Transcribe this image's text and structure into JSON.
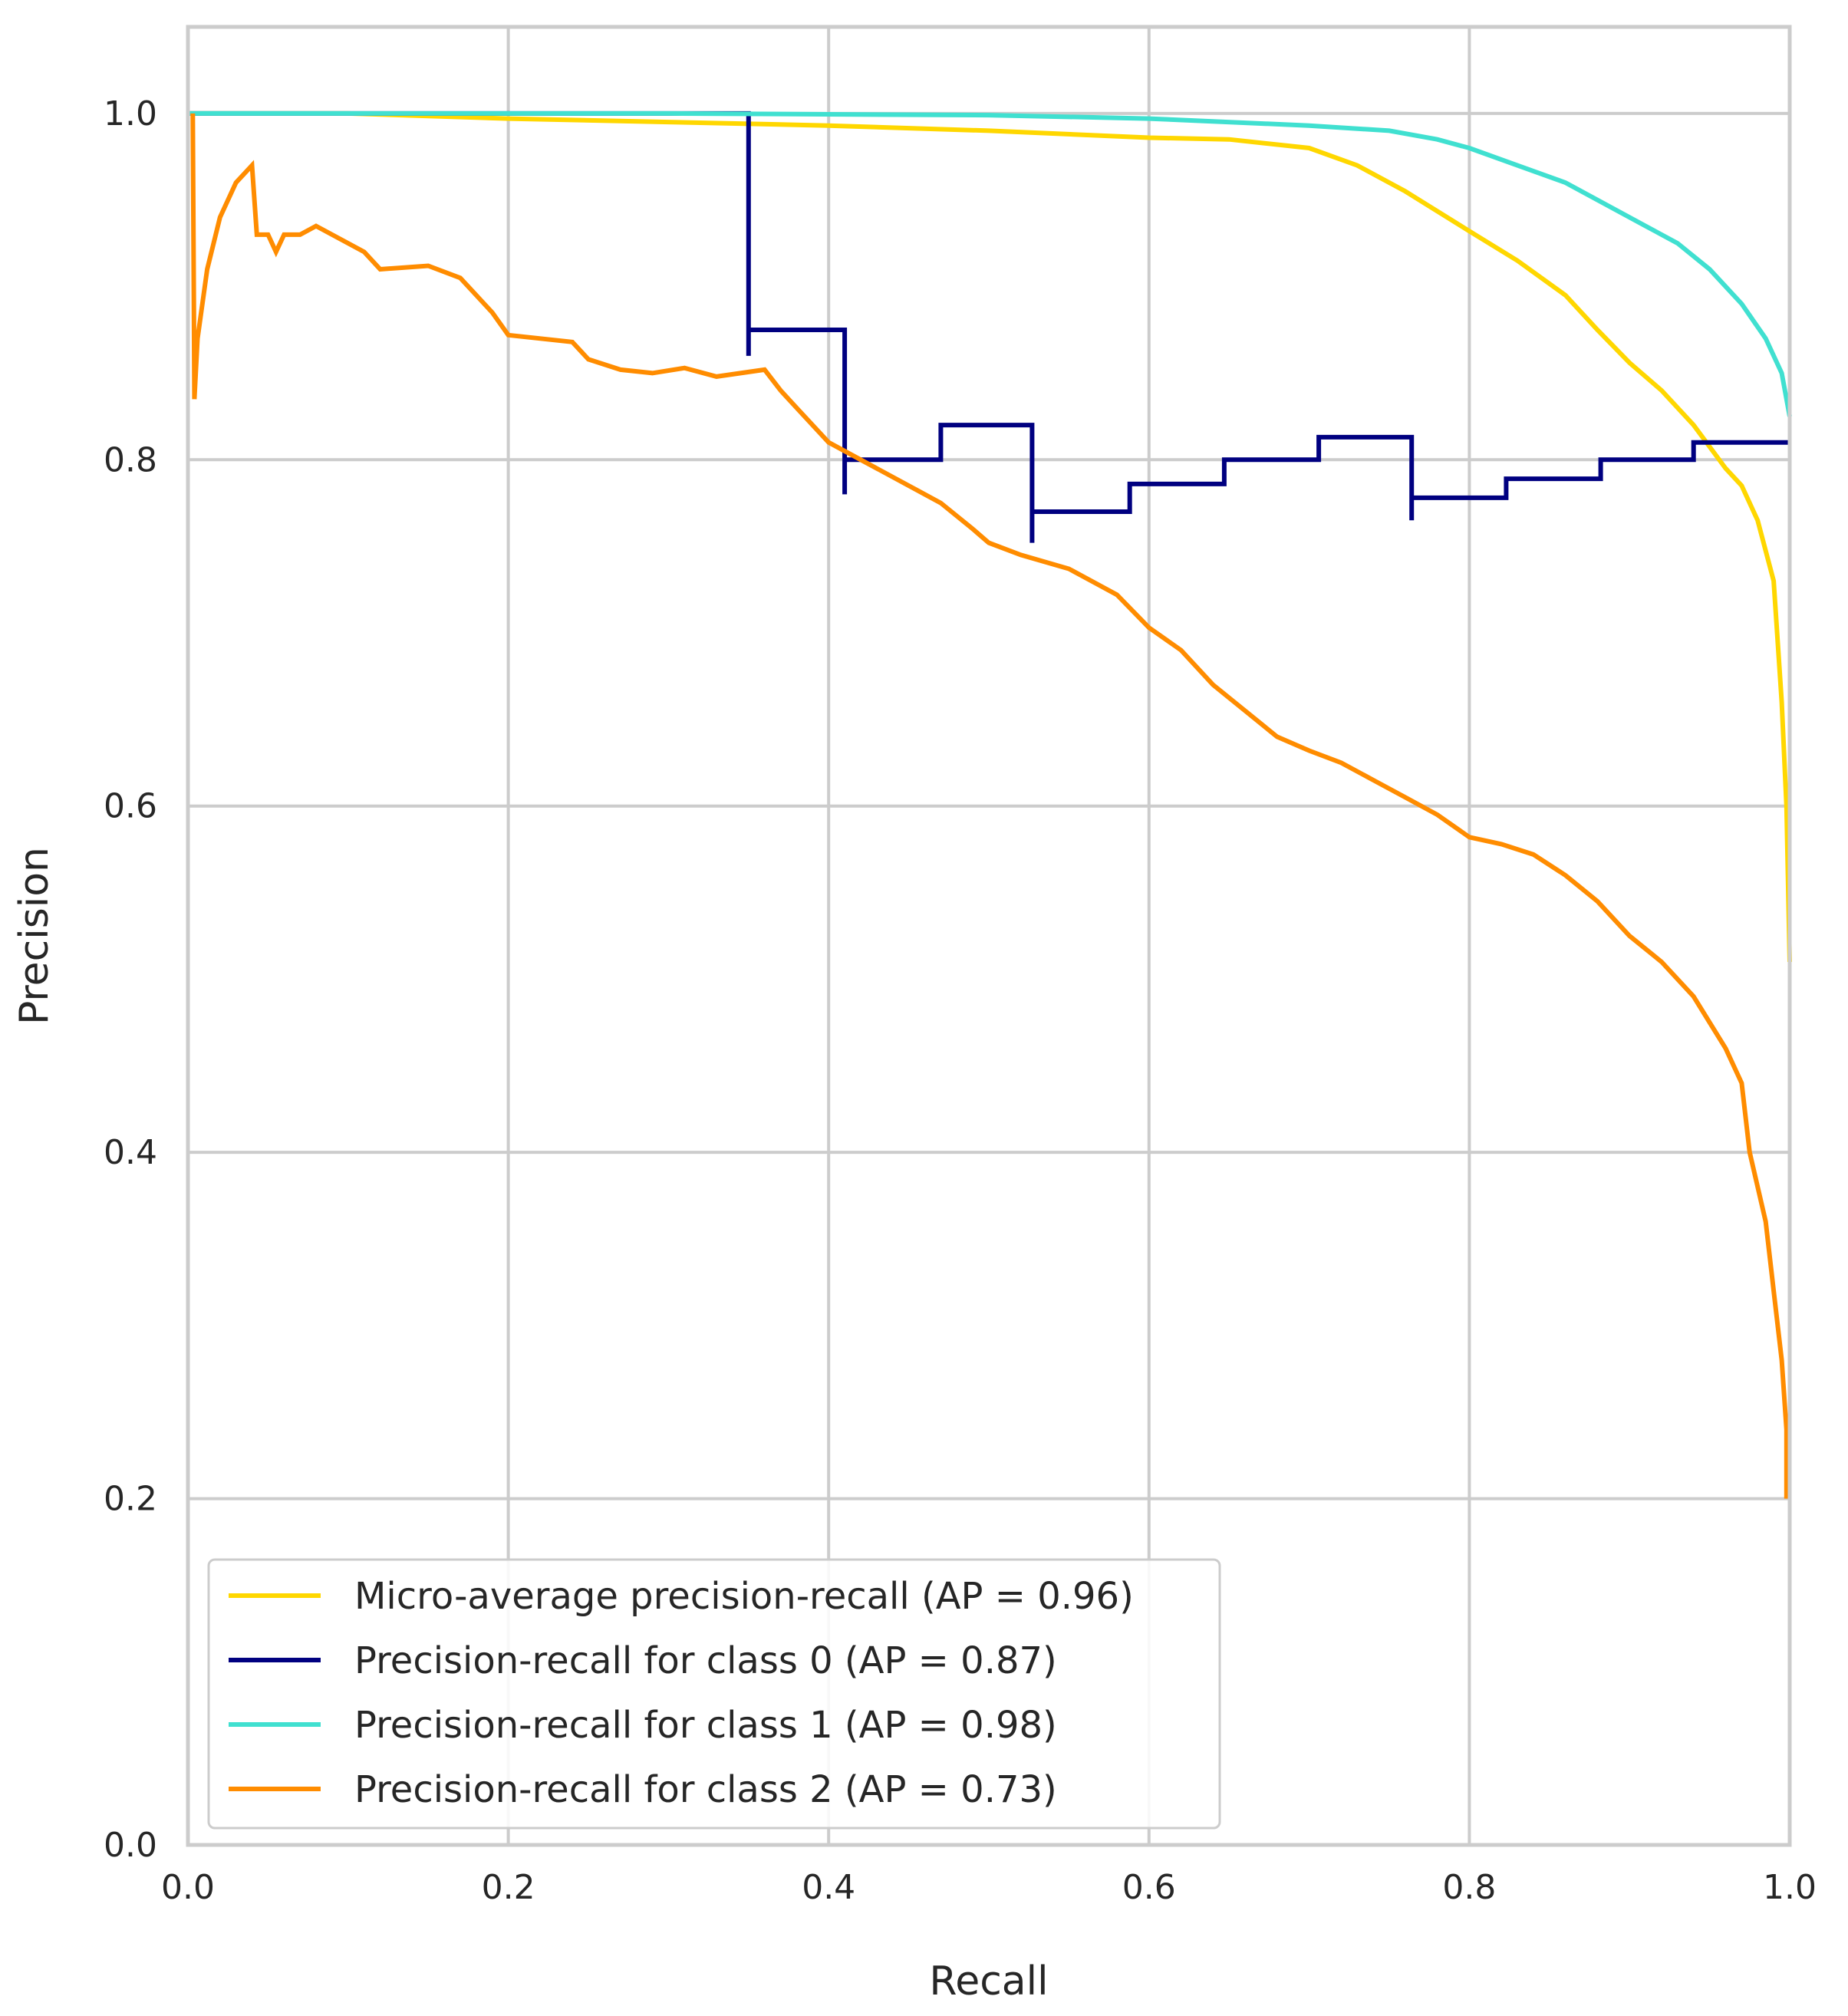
{
  "chart_data": {
    "type": "line",
    "title": "",
    "xlabel": "Recall",
    "ylabel": "Precision",
    "xlim": [
      0.0,
      1.0
    ],
    "ylim": [
      0.0,
      1.05
    ],
    "xticks": [
      "0.0",
      "0.2",
      "0.4",
      "0.6",
      "0.8",
      "1.0"
    ],
    "yticks": [
      "0.0",
      "0.2",
      "0.4",
      "0.6",
      "0.8",
      "1.0"
    ],
    "grid": true,
    "legend_position": "lower-left",
    "series": [
      {
        "name": "Micro-average precision-recall (AP = 0.96)",
        "color": "#FFD700",
        "points": [
          [
            0.0,
            1.0
          ],
          [
            0.1,
            1.0
          ],
          [
            0.2,
            0.997
          ],
          [
            0.3,
            0.995
          ],
          [
            0.4,
            0.993
          ],
          [
            0.5,
            0.99
          ],
          [
            0.6,
            0.986
          ],
          [
            0.65,
            0.985
          ],
          [
            0.7,
            0.98
          ],
          [
            0.73,
            0.97
          ],
          [
            0.76,
            0.955
          ],
          [
            0.8,
            0.932
          ],
          [
            0.83,
            0.915
          ],
          [
            0.86,
            0.895
          ],
          [
            0.88,
            0.875
          ],
          [
            0.9,
            0.856
          ],
          [
            0.92,
            0.84
          ],
          [
            0.94,
            0.82
          ],
          [
            0.96,
            0.795
          ],
          [
            0.97,
            0.785
          ],
          [
            0.98,
            0.765
          ],
          [
            0.99,
            0.73
          ],
          [
            0.995,
            0.66
          ],
          [
            0.998,
            0.6
          ],
          [
            1.0,
            0.51
          ]
        ]
      },
      {
        "name": "Precision-recall for class 0 (AP = 0.87)",
        "color": "#000080",
        "points": [
          [
            0.0,
            1.0
          ],
          [
            0.35,
            1.0
          ],
          [
            0.35,
            0.86
          ],
          [
            0.35,
            0.875
          ],
          [
            0.41,
            0.875
          ],
          [
            0.41,
            0.78
          ],
          [
            0.41,
            0.8
          ],
          [
            0.47,
            0.8
          ],
          [
            0.47,
            0.82
          ],
          [
            0.527,
            0.82
          ],
          [
            0.527,
            0.752
          ],
          [
            0.527,
            0.77
          ],
          [
            0.588,
            0.77
          ],
          [
            0.588,
            0.786
          ],
          [
            0.647,
            0.786
          ],
          [
            0.647,
            0.8
          ],
          [
            0.706,
            0.8
          ],
          [
            0.706,
            0.813
          ],
          [
            0.764,
            0.813
          ],
          [
            0.764,
            0.765
          ],
          [
            0.764,
            0.778
          ],
          [
            0.823,
            0.778
          ],
          [
            0.823,
            0.789
          ],
          [
            0.882,
            0.789
          ],
          [
            0.882,
            0.8
          ],
          [
            0.94,
            0.8
          ],
          [
            0.94,
            0.81
          ],
          [
            1.0,
            0.81
          ]
        ]
      },
      {
        "name": "Precision-recall for class 1 (AP = 0.98)",
        "color": "#40E0D0",
        "points": [
          [
            0.0,
            1.0
          ],
          [
            0.3,
            1.0
          ],
          [
            0.5,
            0.999
          ],
          [
            0.6,
            0.997
          ],
          [
            0.7,
            0.993
          ],
          [
            0.75,
            0.99
          ],
          [
            0.78,
            0.985
          ],
          [
            0.8,
            0.98
          ],
          [
            0.83,
            0.97
          ],
          [
            0.86,
            0.96
          ],
          [
            0.89,
            0.945
          ],
          [
            0.91,
            0.935
          ],
          [
            0.93,
            0.925
          ],
          [
            0.95,
            0.91
          ],
          [
            0.97,
            0.89
          ],
          [
            0.985,
            0.87
          ],
          [
            0.995,
            0.85
          ],
          [
            1.0,
            0.825
          ]
        ]
      },
      {
        "name": "Precision-recall for class 2 (AP = 0.73)",
        "color": "#FF8C00",
        "points": [
          [
            0.003,
            1.0
          ],
          [
            0.004,
            0.835
          ],
          [
            0.006,
            0.87
          ],
          [
            0.012,
            0.91
          ],
          [
            0.02,
            0.94
          ],
          [
            0.03,
            0.96
          ],
          [
            0.04,
            0.97
          ],
          [
            0.043,
            0.93
          ],
          [
            0.05,
            0.93
          ],
          [
            0.055,
            0.92
          ],
          [
            0.06,
            0.93
          ],
          [
            0.07,
            0.93
          ],
          [
            0.08,
            0.935
          ],
          [
            0.1,
            0.925
          ],
          [
            0.11,
            0.92
          ],
          [
            0.12,
            0.91
          ],
          [
            0.15,
            0.912
          ],
          [
            0.17,
            0.905
          ],
          [
            0.19,
            0.885
          ],
          [
            0.2,
            0.872
          ],
          [
            0.22,
            0.87
          ],
          [
            0.24,
            0.868
          ],
          [
            0.25,
            0.858
          ],
          [
            0.27,
            0.852
          ],
          [
            0.29,
            0.85
          ],
          [
            0.31,
            0.853
          ],
          [
            0.33,
            0.848
          ],
          [
            0.36,
            0.852
          ],
          [
            0.37,
            0.84
          ],
          [
            0.38,
            0.83
          ],
          [
            0.4,
            0.81
          ],
          [
            0.42,
            0.8
          ],
          [
            0.45,
            0.785
          ],
          [
            0.47,
            0.775
          ],
          [
            0.49,
            0.76
          ],
          [
            0.5,
            0.752
          ],
          [
            0.52,
            0.745
          ],
          [
            0.55,
            0.737
          ],
          [
            0.58,
            0.722
          ],
          [
            0.6,
            0.703
          ],
          [
            0.62,
            0.69
          ],
          [
            0.64,
            0.67
          ],
          [
            0.66,
            0.655
          ],
          [
            0.68,
            0.64
          ],
          [
            0.7,
            0.632
          ],
          [
            0.72,
            0.625
          ],
          [
            0.74,
            0.615
          ],
          [
            0.76,
            0.605
          ],
          [
            0.78,
            0.595
          ],
          [
            0.8,
            0.582
          ],
          [
            0.82,
            0.578
          ],
          [
            0.84,
            0.572
          ],
          [
            0.86,
            0.56
          ],
          [
            0.88,
            0.545
          ],
          [
            0.9,
            0.525
          ],
          [
            0.92,
            0.51
          ],
          [
            0.94,
            0.49
          ],
          [
            0.96,
            0.46
          ],
          [
            0.97,
            0.44
          ],
          [
            0.975,
            0.4
          ],
          [
            0.985,
            0.36
          ],
          [
            0.99,
            0.32
          ],
          [
            0.995,
            0.28
          ],
          [
            0.998,
            0.24
          ],
          [
            0.998,
            0.2
          ]
        ]
      }
    ]
  }
}
